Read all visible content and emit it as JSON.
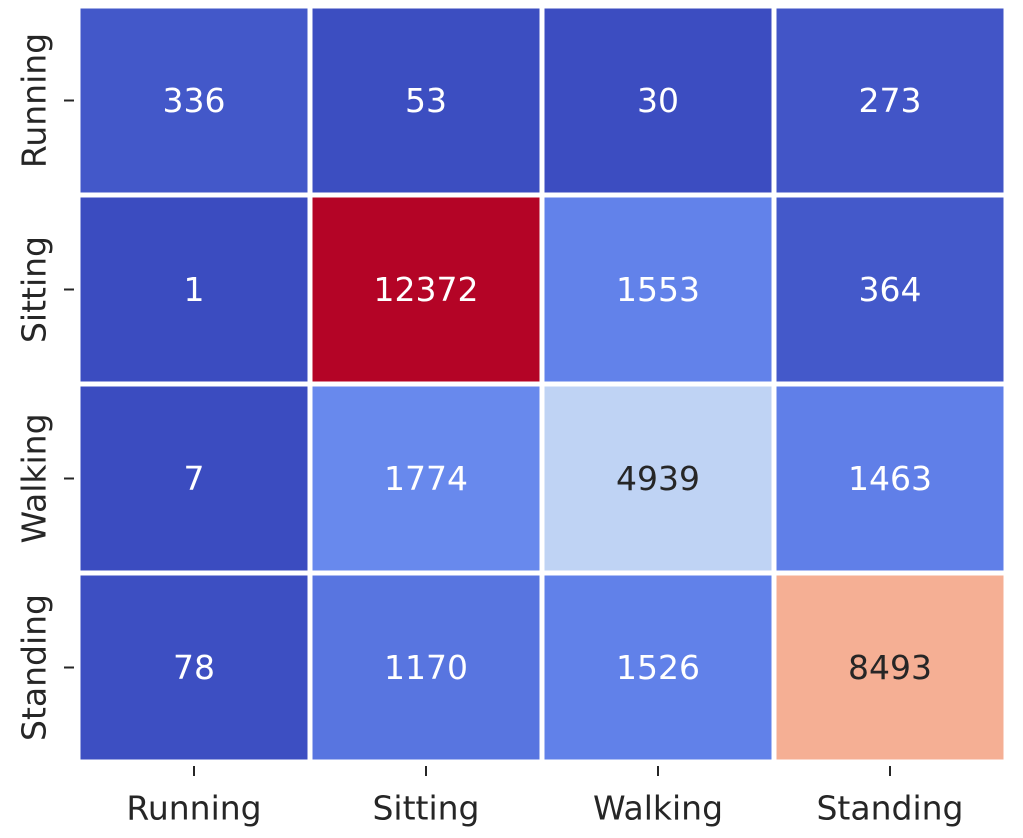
{
  "chart_data": {
    "type": "heatmap",
    "title": "",
    "xlabel": "",
    "ylabel": "",
    "x_categories": [
      "Running",
      "Sitting",
      "Walking",
      "Standing"
    ],
    "y_categories": [
      "Running",
      "Sitting",
      "Walking",
      "Standing"
    ],
    "values": [
      [
        336,
        53,
        30,
        273
      ],
      [
        1,
        12372,
        1553,
        364
      ],
      [
        7,
        1774,
        4939,
        1463
      ],
      [
        78,
        1170,
        1526,
        8493
      ]
    ],
    "colormap": "coolwarm",
    "color_range": [
      1,
      12372
    ],
    "colorbar": false,
    "cell_borders": true
  }
}
